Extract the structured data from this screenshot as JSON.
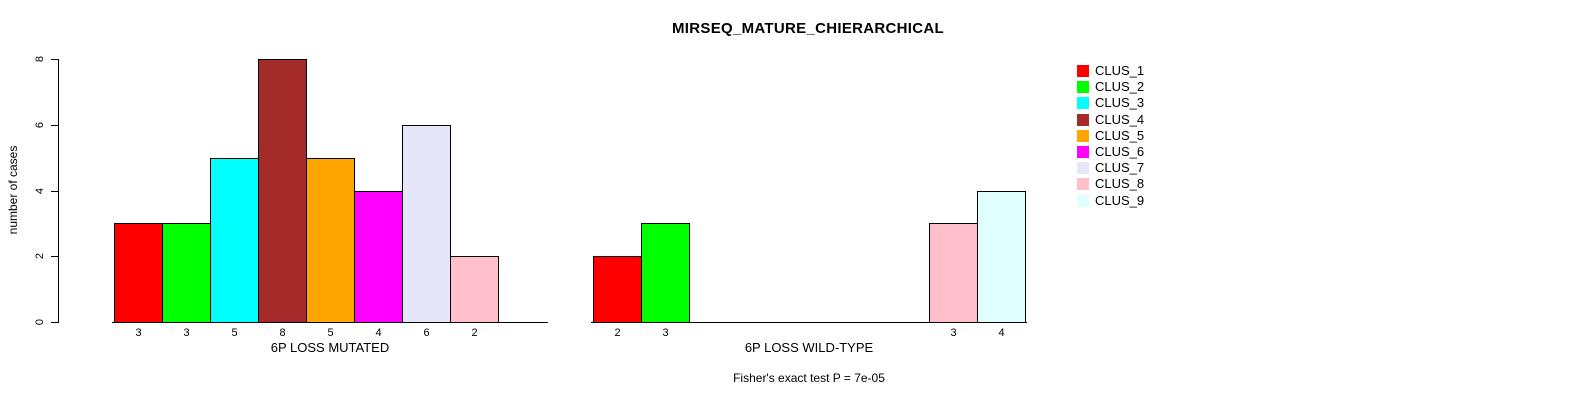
{
  "page_title": "MIRSEQ_MATURE_CHIERARCHICAL",
  "footer_note": "Fisher's exact test P = 7e-05",
  "y_axis": {
    "label": "number of cases",
    "ticks": [
      "0",
      "2",
      "4",
      "6",
      "8"
    ]
  },
  "legend": {
    "position": "right",
    "entries": [
      {
        "label": "CLUS_1",
        "color": "#FF0000"
      },
      {
        "label": "CLUS_2",
        "color": "#00FF00"
      },
      {
        "label": "CLUS_3",
        "color": "#00FFFF"
      },
      {
        "label": "CLUS_4",
        "color": "#A52A2A"
      },
      {
        "label": "CLUS_5",
        "color": "#FFA500"
      },
      {
        "label": "CLUS_6",
        "color": "#FF00FF"
      },
      {
        "label": "CLUS_7",
        "color": "#E6E6FA"
      },
      {
        "label": "CLUS_8",
        "color": "#FFC0CB"
      },
      {
        "label": "CLUS_9",
        "color": "#E0FFFF"
      }
    ]
  },
  "chart_data": [
    {
      "type": "bar",
      "group": "mutated",
      "xlabel": "6P LOSS MUTATED",
      "ylabel": "number of cases",
      "categories": [
        "CLUS_1",
        "CLUS_2",
        "CLUS_3",
        "CLUS_4",
        "CLUS_5",
        "CLUS_6",
        "CLUS_7",
        "CLUS_8",
        "CLUS_9"
      ],
      "values": [
        3,
        3,
        5,
        8,
        5,
        4,
        6,
        2,
        0
      ],
      "bar_labels": [
        "3",
        "3",
        "5",
        "8",
        "5",
        "4",
        "6",
        "2",
        ""
      ],
      "colors": [
        "#FF0000",
        "#00FF00",
        "#00FFFF",
        "#A52A2A",
        "#FFA500",
        "#FF00FF",
        "#E6E6FA",
        "#FFC0CB",
        "#E0FFFF"
      ],
      "ylim": [
        0,
        8
      ],
      "yticks": [
        0,
        2,
        4,
        6,
        8
      ],
      "grid": false
    },
    {
      "type": "bar",
      "group": "wild-type",
      "xlabel": "6P LOSS WILD-TYPE",
      "ylabel": "number of cases",
      "categories": [
        "CLUS_1",
        "CLUS_2",
        "CLUS_3",
        "CLUS_4",
        "CLUS_5",
        "CLUS_6",
        "CLUS_7",
        "CLUS_8",
        "CLUS_9"
      ],
      "values": [
        2,
        3,
        0,
        0,
        0,
        0,
        0,
        3,
        4
      ],
      "bar_labels": [
        "2",
        "3",
        "",
        "",
        "",
        "",
        "",
        "3",
        "4"
      ],
      "colors": [
        "#FF0000",
        "#00FF00",
        "#00FFFF",
        "#A52A2A",
        "#FFA500",
        "#FF00FF",
        "#E6E6FA",
        "#FFC0CB",
        "#E0FFFF"
      ],
      "ylim": [
        0,
        8
      ],
      "yticks": [
        0,
        2,
        4,
        6,
        8
      ],
      "grid": false
    }
  ]
}
